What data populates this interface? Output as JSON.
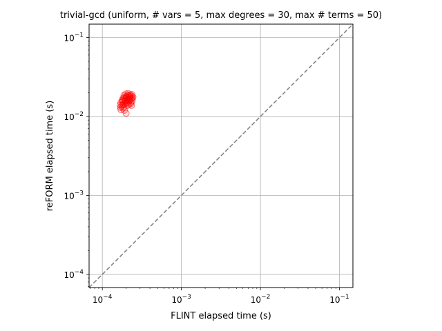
{
  "chart_data": {
    "type": "scatter",
    "title": "trivial-gcd (uniform, # vars = 5, max degrees = 30, max # terms = 50)",
    "xlabel": "FLINT elapsed time (s)",
    "ylabel": "reFORM elapsed time (s)",
    "xscale": "log",
    "yscale": "log",
    "xlim": [
      6.8e-05,
      0.148
    ],
    "ylim": [
      6.8e-05,
      0.148
    ],
    "grid": true,
    "x_ticks": [
      {
        "value": 0.0001,
        "base": "10",
        "exp": "−4"
      },
      {
        "value": 0.001,
        "base": "10",
        "exp": "−3"
      },
      {
        "value": 0.01,
        "base": "10",
        "exp": "−2"
      },
      {
        "value": 0.1,
        "base": "10",
        "exp": "−1"
      }
    ],
    "y_ticks": [
      {
        "value": 0.0001,
        "base": "10",
        "exp": "−4"
      },
      {
        "value": 0.001,
        "base": "10",
        "exp": "−3"
      },
      {
        "value": 0.01,
        "base": "10",
        "exp": "−2"
      },
      {
        "value": 0.1,
        "base": "10",
        "exp": "−1"
      }
    ],
    "reference_line": {
      "type": "y=x",
      "style": "dashed",
      "color": "#808080"
    },
    "series": [
      {
        "marker_color": "#ff0000",
        "points": [
          [
            0.000172,
            0.015
          ],
          [
            0.000178,
            0.0162
          ],
          [
            0.000185,
            0.0143
          ],
          [
            0.00019,
            0.0171
          ],
          [
            0.000195,
            0.0155
          ],
          [
            0.0002,
            0.018
          ],
          [
            0.000205,
            0.016
          ],
          [
            0.00021,
            0.0148
          ],
          [
            0.000215,
            0.0175
          ],
          [
            0.00022,
            0.0188
          ],
          [
            0.000225,
            0.0165
          ],
          [
            0.00023,
            0.0152
          ],
          [
            0.000235,
            0.0182
          ],
          [
            0.00024,
            0.017
          ],
          [
            0.000182,
            0.0128
          ],
          [
            0.000176,
            0.0135
          ],
          [
            0.00019,
            0.012
          ],
          [
            0.0002,
            0.011
          ],
          [
            0.000168,
            0.014
          ],
          [
            0.000172,
            0.0122
          ],
          [
            0.000188,
            0.0132
          ],
          [
            0.000208,
            0.0138
          ],
          [
            0.000218,
            0.0158
          ],
          [
            0.000228,
            0.0145
          ],
          [
            0.000238,
            0.0158
          ],
          [
            0.000198,
            0.0193
          ],
          [
            0.000212,
            0.0196
          ],
          [
            0.000222,
            0.0178
          ],
          [
            0.000244,
            0.0176
          ],
          [
            0.000185,
            0.0172
          ],
          [
            0.000195,
            0.0168
          ],
          [
            0.00018,
            0.0155
          ],
          [
            0.000204,
            0.0172
          ],
          [
            0.000214,
            0.0165
          ],
          [
            0.000226,
            0.0186
          ],
          [
            0.000232,
            0.0168
          ],
          [
            0.000202,
            0.015
          ],
          [
            0.000192,
            0.0145
          ],
          [
            0.000178,
            0.014
          ],
          [
            0.000216,
            0.0142
          ],
          [
            0.000234,
            0.0138
          ],
          [
            0.000188,
            0.0185
          ],
          [
            0.0002,
            0.0175
          ],
          [
            0.00021,
            0.0185
          ],
          [
            0.000224,
            0.0172
          ],
          [
            0.000184,
            0.016
          ],
          [
            0.000196,
            0.0158
          ],
          [
            0.000206,
            0.0163
          ],
          [
            0.00017,
            0.013
          ],
          [
            0.000236,
            0.019
          ]
        ]
      }
    ]
  }
}
